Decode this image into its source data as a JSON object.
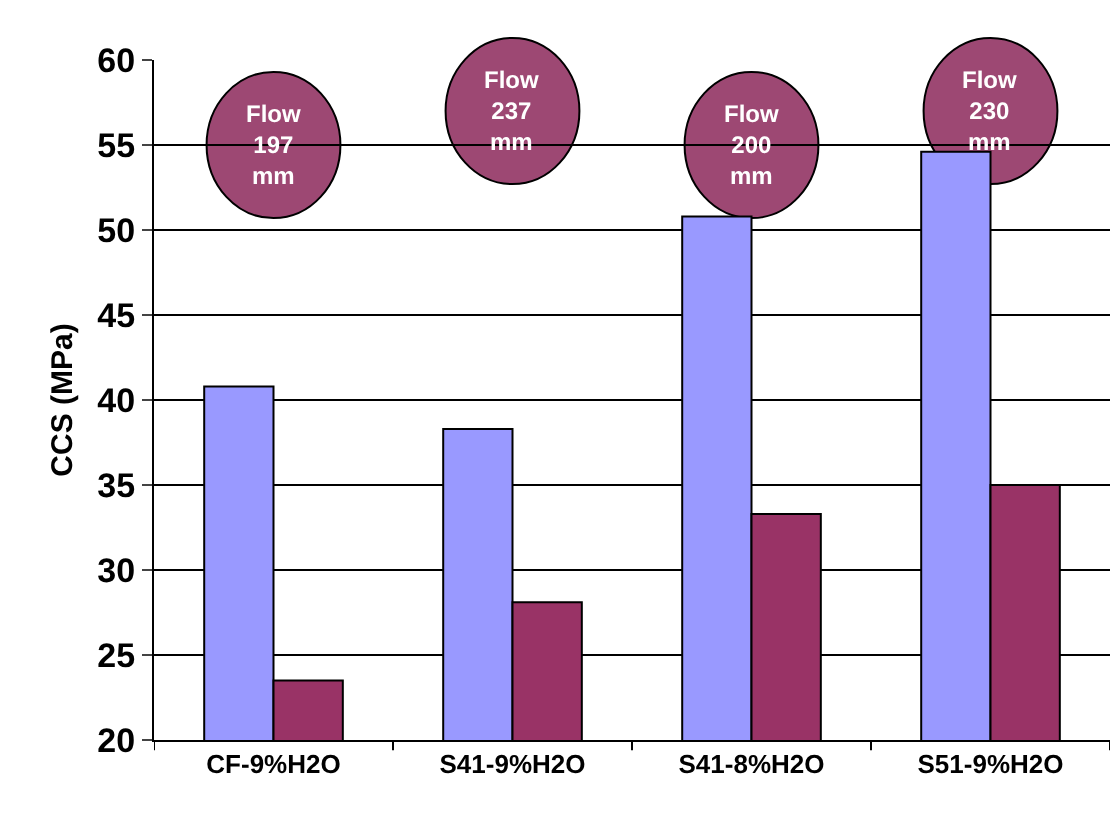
{
  "chart_data": {
    "type": "bar",
    "ylabel": "CCS (MPa)",
    "categories": [
      "CF-9%H2O",
      "S41-9%H2O",
      "S41-8%H2O",
      "S51-9%H2O"
    ],
    "series": [
      {
        "color": "#9999ff",
        "values": [
          40.8,
          38.3,
          50.8,
          54.6
        ]
      },
      {
        "color": "#993366",
        "values": [
          23.5,
          28.1,
          33.3,
          35.0
        ]
      }
    ],
    "ylim": [
      20,
      60
    ],
    "yticks": [
      20,
      25,
      30,
      35,
      40,
      45,
      50,
      55,
      60
    ],
    "grid": "y",
    "annotations": [
      "Flow\n197\nmm",
      "Flow\n237\nmm",
      "Flow\n200\nmm",
      "Flow\n230\nmm"
    ]
  }
}
